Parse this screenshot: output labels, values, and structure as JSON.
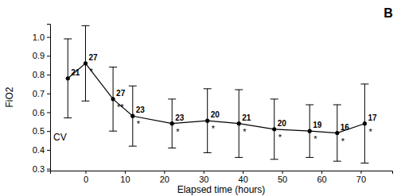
{
  "chart_data": {
    "type": "line",
    "title": "B",
    "x_label": "Elapsed time (hours)",
    "y_label": "FiO2",
    "x": [
      -4.5,
      0,
      7,
      12,
      22,
      31,
      39,
      48,
      57,
      64,
      71
    ],
    "series": [
      {
        "name": "CV",
        "color": "#000000",
        "marker": "circle",
        "line_style": "solid",
        "values": [
          0.78,
          0.86,
          0.67,
          0.58,
          0.54,
          0.555,
          0.54,
          0.51,
          0.5,
          0.49,
          0.54
        ],
        "error": [
          0.21,
          0.2,
          0.17,
          0.16,
          0.13,
          0.17,
          0.18,
          0.16,
          0.14,
          0.15,
          0.21
        ],
        "n": [
          21,
          27,
          27,
          23,
          23,
          20,
          21,
          20,
          19,
          16,
          17
        ],
        "significance": [
          null,
          "*",
          "**",
          "*",
          "*",
          "*",
          "*",
          "*",
          "*",
          "*",
          "*"
        ]
      }
    ],
    "xlim": [
      -9,
      78
    ],
    "xticks": [
      0,
      10,
      20,
      30,
      40,
      50,
      60,
      70
    ],
    "ylim": [
      0.29,
      1.07
    ],
    "yticks": [
      0.3,
      0.4,
      0.5,
      0.6,
      0.7,
      0.8,
      0.9,
      {
        "value": 1,
        "label": "1.0"
      }
    ],
    "grid": false
  }
}
